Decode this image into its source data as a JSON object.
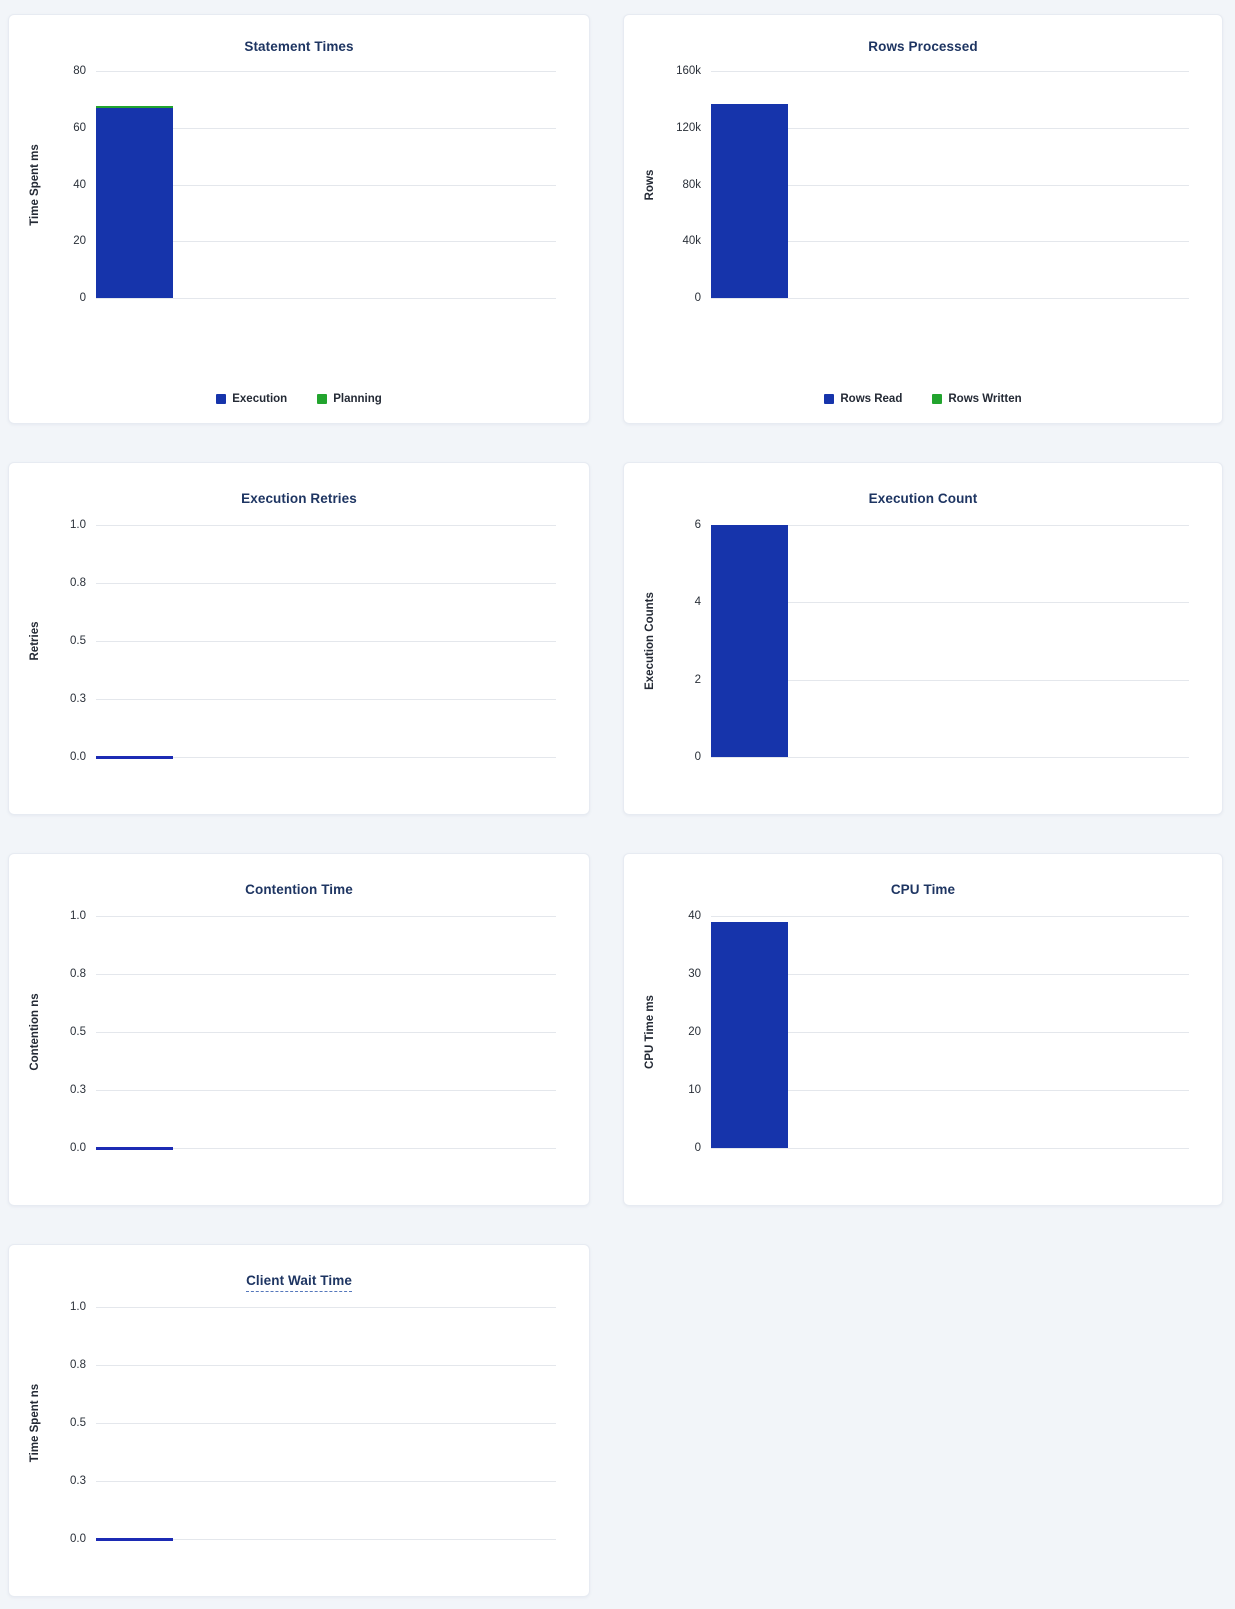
{
  "colors": {
    "bar_blue": "#1634ab",
    "bar_green": "#22a42e",
    "zero_line_blue": "#1c2bb4",
    "title_navy": "#1e3562",
    "page_background": "#f2f5f9"
  },
  "chart_data": [
    {
      "id": "statement-times",
      "type": "bar",
      "title": "Statement Times",
      "ylabel": "Time Spent ms",
      "ylim": [
        0,
        80
      ],
      "grid": true,
      "legend_position": "bottom",
      "yticks": [
        {
          "value": 80,
          "label": "80"
        },
        {
          "value": 60,
          "label": "60"
        },
        {
          "value": 40,
          "label": "40"
        },
        {
          "value": 20,
          "label": "20"
        },
        {
          "value": 0,
          "label": "0"
        }
      ],
      "series": [
        {
          "name": "Execution",
          "color": "#1634ab",
          "value": 67
        },
        {
          "name": "Planning",
          "color": "#22a42e",
          "value": 0.7
        }
      ],
      "legend": true
    },
    {
      "id": "rows-processed",
      "type": "bar",
      "title": "Rows Processed",
      "ylabel": "Rows",
      "ylim": [
        0,
        160000
      ],
      "grid": true,
      "legend_position": "bottom",
      "yticks": [
        {
          "value": 160000,
          "label": "160k"
        },
        {
          "value": 120000,
          "label": "120k"
        },
        {
          "value": 80000,
          "label": "80k"
        },
        {
          "value": 40000,
          "label": "40k"
        },
        {
          "value": 0,
          "label": "0"
        }
      ],
      "series": [
        {
          "name": "Rows Read",
          "color": "#1634ab",
          "value": 137000
        },
        {
          "name": "Rows Written",
          "color": "#22a42e",
          "value": 0
        }
      ],
      "legend": true
    },
    {
      "id": "execution-retries",
      "type": "bar",
      "title": "Execution Retries",
      "ylabel": "Retries",
      "ylim": [
        0,
        1
      ],
      "grid": true,
      "yticks": [
        {
          "value": 1,
          "label": "1.0"
        },
        {
          "value": 0.75,
          "label": "0.8"
        },
        {
          "value": 0.5,
          "label": "0.5"
        },
        {
          "value": 0.25,
          "label": "0.3"
        },
        {
          "value": 0,
          "label": "0.0"
        }
      ],
      "series": [
        {
          "name": "Retries",
          "color": "#1634ab",
          "value": 0
        }
      ],
      "legend": false
    },
    {
      "id": "execution-count",
      "type": "bar",
      "title": "Execution Count",
      "ylabel": "Execution Counts",
      "ylim": [
        0,
        6
      ],
      "grid": true,
      "yticks": [
        {
          "value": 6,
          "label": "6"
        },
        {
          "value": 4,
          "label": "4"
        },
        {
          "value": 2,
          "label": "2"
        },
        {
          "value": 0,
          "label": "0"
        }
      ],
      "series": [
        {
          "name": "Execution Count",
          "color": "#1634ab",
          "value": 6
        }
      ],
      "legend": false
    },
    {
      "id": "contention-time",
      "type": "bar",
      "title": "Contention Time",
      "ylabel": "Contention ns",
      "ylim": [
        0,
        1
      ],
      "grid": true,
      "yticks": [
        {
          "value": 1,
          "label": "1.0"
        },
        {
          "value": 0.75,
          "label": "0.8"
        },
        {
          "value": 0.5,
          "label": "0.5"
        },
        {
          "value": 0.25,
          "label": "0.3"
        },
        {
          "value": 0,
          "label": "0.0"
        }
      ],
      "series": [
        {
          "name": "Contention",
          "color": "#1634ab",
          "value": 0
        }
      ],
      "legend": false
    },
    {
      "id": "cpu-time",
      "type": "bar",
      "title": "CPU Time",
      "ylabel": "CPU Time ms",
      "ylim": [
        0,
        40
      ],
      "grid": true,
      "yticks": [
        {
          "value": 40,
          "label": "40"
        },
        {
          "value": 30,
          "label": "30"
        },
        {
          "value": 20,
          "label": "20"
        },
        {
          "value": 10,
          "label": "10"
        },
        {
          "value": 0,
          "label": "0"
        }
      ],
      "series": [
        {
          "name": "CPU Time",
          "color": "#1634ab",
          "value": 39
        }
      ],
      "legend": false
    },
    {
      "id": "client-wait-time",
      "type": "bar",
      "title": "Client Wait Time",
      "title_has_tooltip": true,
      "ylabel": "Time Spent ns",
      "ylim": [
        0,
        1
      ],
      "grid": true,
      "yticks": [
        {
          "value": 1,
          "label": "1.0"
        },
        {
          "value": 0.75,
          "label": "0.8"
        },
        {
          "value": 0.5,
          "label": "0.5"
        },
        {
          "value": 0.25,
          "label": "0.3"
        },
        {
          "value": 0,
          "label": "0.0"
        }
      ],
      "series": [
        {
          "name": "Client Wait",
          "color": "#1634ab",
          "value": 0
        }
      ],
      "legend": false
    }
  ]
}
